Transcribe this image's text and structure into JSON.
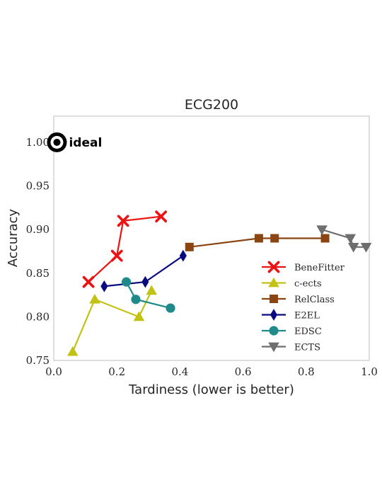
{
  "chart_data": {
    "type": "line",
    "title": "ECG200",
    "xlabel": "Tardiness (lower is better)",
    "ylabel": "Accuracy",
    "xlim": [
      0.0,
      1.0
    ],
    "ylim": [
      0.75,
      1.03
    ],
    "xticks": [
      "0.0",
      "0.2",
      "0.4",
      "0.6",
      "0.8",
      "1.0"
    ],
    "xtick_values": [
      0.0,
      0.2,
      0.4,
      0.6,
      0.8,
      1.0
    ],
    "yticks": [
      "0.75",
      "0.80",
      "0.85",
      "0.90",
      "0.95",
      "1.00"
    ],
    "ytick_values": [
      0.75,
      0.8,
      0.85,
      0.9,
      0.95,
      1.0
    ],
    "grid": false,
    "legend_position": "lower-right",
    "ideal": {
      "label": "ideal",
      "x": 0.01,
      "y": 1.0
    },
    "series": [
      {
        "name": "BeneFitter",
        "color": "#ee1111",
        "marker": "x",
        "x": [
          0.11,
          0.2,
          0.22,
          0.34
        ],
        "y": [
          0.84,
          0.87,
          0.91,
          0.915
        ]
      },
      {
        "name": "c-ects",
        "color": "#c2c214",
        "marker": "triangle-up",
        "x": [
          0.06,
          0.13,
          0.27,
          0.31
        ],
        "y": [
          0.76,
          0.82,
          0.8,
          0.83
        ]
      },
      {
        "name": "RelClass",
        "color": "#8b4513",
        "marker": "square",
        "x": [
          0.43,
          0.65,
          0.7,
          0.86
        ],
        "y": [
          0.88,
          0.89,
          0.89,
          0.89
        ]
      },
      {
        "name": "E2EL",
        "color": "#0a0a80",
        "marker": "diamond",
        "x": [
          0.16,
          0.29,
          0.41
        ],
        "y": [
          0.835,
          0.84,
          0.87
        ]
      },
      {
        "name": "EDSC",
        "color": "#1f8a8a",
        "marker": "circle",
        "x": [
          0.23,
          0.26,
          0.37
        ],
        "y": [
          0.84,
          0.82,
          0.81
        ]
      },
      {
        "name": "ECTS",
        "color": "#6e6e6e",
        "marker": "triangle-down",
        "x": [
          0.85,
          0.94,
          0.95,
          0.99
        ],
        "y": [
          0.9,
          0.89,
          0.88,
          0.88
        ]
      }
    ]
  }
}
